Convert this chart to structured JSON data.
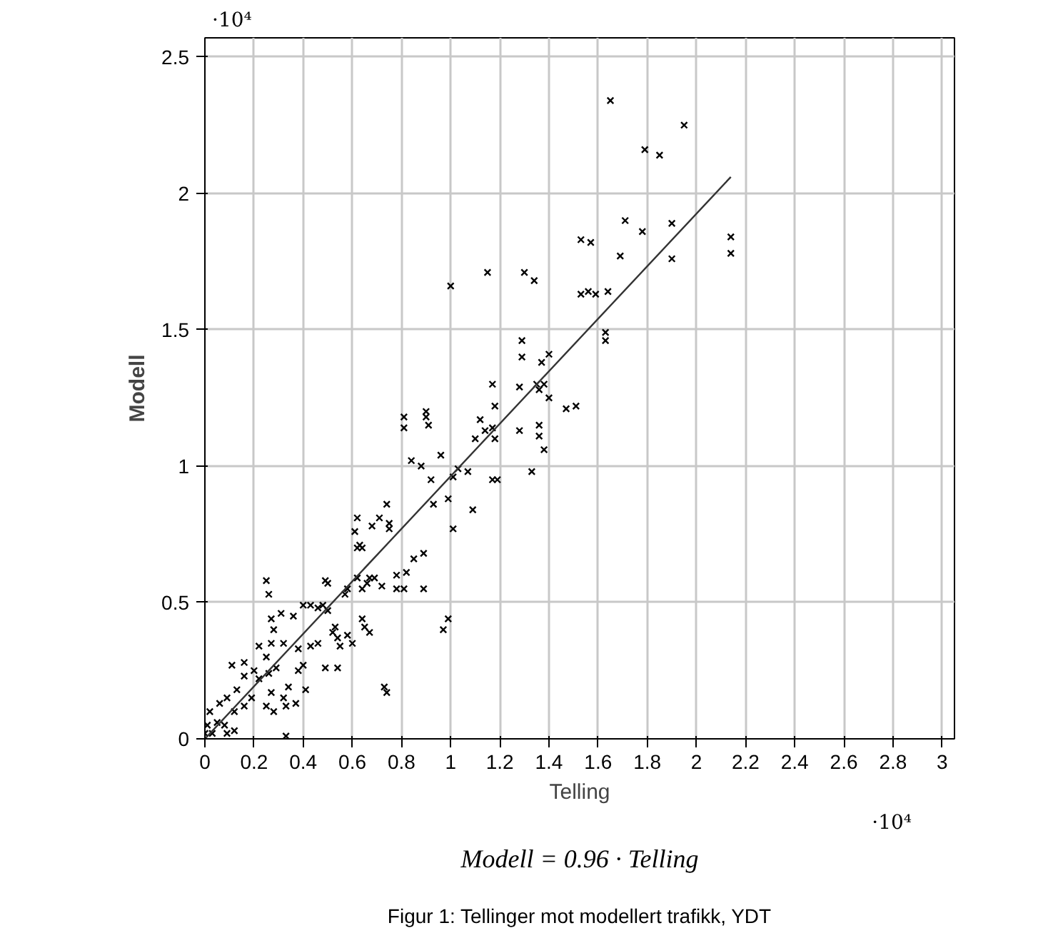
{
  "chart_data": {
    "type": "scatter",
    "xlabel": "Telling",
    "ylabel": "Modell",
    "xlim": [
      0,
      3.05
    ],
    "ylim": [
      0,
      2.57
    ],
    "xticks": [
      0,
      0.2,
      0.4,
      0.6,
      0.8,
      1,
      1.2,
      1.4,
      1.6,
      1.8,
      2,
      2.2,
      2.4,
      2.6,
      2.8,
      3
    ],
    "yticks": [
      0,
      0.5,
      1,
      1.5,
      2,
      2.5
    ],
    "grid": true,
    "marker": "cross",
    "annotations": [
      "·10⁴",
      "·10⁴",
      "Modell = 0.96 · Telling",
      "Figur 1: Tellinger mot modellert trafikk, YDT"
    ],
    "series": [
      {
        "color": "#000000",
        "x": [
          1.65,
          1.95,
          1.79,
          1.85,
          1.71,
          1.78,
          1.9,
          1.9,
          2.14,
          2.14,
          1.69,
          1.53,
          1.57,
          1.0,
          1.15,
          1.3,
          1.34,
          1.53,
          1.56,
          1.59,
          1.64,
          1.63,
          1.63,
          1.29,
          1.29,
          1.37,
          1.4,
          1.17,
          1.38,
          1.36,
          1.35,
          1.28,
          1.4,
          1.47,
          1.51,
          1.18,
          1.12,
          1.14,
          1.18,
          1.17,
          1.1,
          1.28,
          1.36,
          1.36,
          1.38,
          1.33,
          1.17,
          1.19,
          1.07,
          1.01,
          1.03,
          0.92,
          0.93,
          1.01,
          1.09,
          0.99,
          0.97,
          0.81,
          0.81,
          0.9,
          0.9,
          0.91,
          0.84,
          0.88,
          0.96,
          0.74,
          0.62,
          0.71,
          0.75,
          0.75,
          0.68,
          0.61,
          0.62,
          0.64,
          0.85,
          0.89,
          0.78,
          0.82,
          0.81,
          0.89,
          0.78,
          0.69,
          0.66,
          0.67,
          0.72,
          0.64,
          0.62,
          0.74,
          0.73,
          0.25,
          0.26,
          0.4,
          0.43,
          0.49,
          0.5,
          0.57,
          0.58,
          0.48,
          0.27,
          0.31,
          0.36,
          0.28,
          0.27,
          0.32,
          0.46,
          0.5,
          0.52,
          0.54,
          0.46,
          0.43,
          0.38,
          0.4,
          0.49,
          0.54,
          0.22,
          0.25,
          0.16,
          0.11,
          0.16,
          0.2,
          0.22,
          0.26,
          0.29,
          0.34,
          0.38,
          0.33,
          0.37,
          0.13,
          0.09,
          0.12,
          0.16,
          0.25,
          0.28,
          0.19,
          0.27,
          0.06,
          0.02,
          0.05,
          0.01,
          0.08,
          0.12,
          0.03,
          0.0,
          0.09,
          0.33,
          0.63,
          0.99,
          0.64,
          0.65,
          0.67,
          0.6,
          0.58,
          0.55,
          0.53,
          0.41,
          0.32
        ],
        "values": [
          2.34,
          2.25,
          2.16,
          2.14,
          1.9,
          1.86,
          1.89,
          1.76,
          1.84,
          1.78,
          1.77,
          1.83,
          1.82,
          1.66,
          1.71,
          1.71,
          1.68,
          1.63,
          1.64,
          1.63,
          1.64,
          1.49,
          1.46,
          1.46,
          1.4,
          1.38,
          1.41,
          1.3,
          1.3,
          1.28,
          1.3,
          1.29,
          1.25,
          1.21,
          1.22,
          1.22,
          1.17,
          1.13,
          1.1,
          1.14,
          1.1,
          1.13,
          1.15,
          1.11,
          1.06,
          0.98,
          0.95,
          0.95,
          0.98,
          0.96,
          0.99,
          0.95,
          0.86,
          0.77,
          0.84,
          0.44,
          0.4,
          1.18,
          1.14,
          1.2,
          1.18,
          1.15,
          1.02,
          1.0,
          1.04,
          0.86,
          0.81,
          0.81,
          0.79,
          0.77,
          0.78,
          0.76,
          0.7,
          0.7,
          0.66,
          0.68,
          0.6,
          0.61,
          0.55,
          0.55,
          0.55,
          0.59,
          0.57,
          0.59,
          0.56,
          0.55,
          0.59,
          0.17,
          0.19,
          0.58,
          0.53,
          0.49,
          0.49,
          0.58,
          0.57,
          0.53,
          0.55,
          0.49,
          0.44,
          0.46,
          0.45,
          0.4,
          0.35,
          0.35,
          0.48,
          0.47,
          0.39,
          0.37,
          0.35,
          0.34,
          0.33,
          0.27,
          0.26,
          0.26,
          0.34,
          0.3,
          0.28,
          0.27,
          0.23,
          0.25,
          0.22,
          0.24,
          0.26,
          0.19,
          0.25,
          0.12,
          0.13,
          0.18,
          0.15,
          0.1,
          0.12,
          0.12,
          0.1,
          0.15,
          0.17,
          0.13,
          0.1,
          0.06,
          0.05,
          0.05,
          0.03,
          0.02,
          0.02,
          0.02,
          0.01,
          0.71,
          0.88,
          0.44,
          0.41,
          0.39,
          0.35,
          0.38,
          0.34,
          0.41,
          0.18,
          0.15
        ]
      },
      {
        "type": "line",
        "color": "#333333",
        "marker": "none",
        "line_style": "solid",
        "x": [
          0,
          2.14
        ],
        "values": [
          0,
          2.06
        ]
      }
    ]
  }
}
